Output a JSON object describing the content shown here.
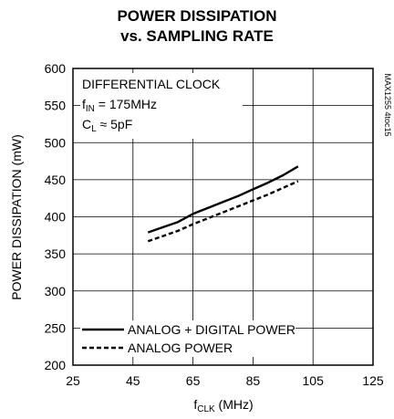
{
  "chart_data": {
    "type": "line",
    "title_line1": "POWER DISSIPATION",
    "title_line2": "vs. SAMPLING RATE",
    "xlabel_main": "f",
    "xlabel_sub": "CLK",
    "xlabel_unit": " (MHz)",
    "ylabel": "POWER DISSIPATION (mW)",
    "xlim": [
      25,
      125
    ],
    "ylim": [
      200,
      600
    ],
    "xticks": [
      25,
      45,
      65,
      85,
      105,
      125
    ],
    "yticks": [
      200,
      250,
      300,
      350,
      400,
      450,
      500,
      550,
      600
    ],
    "grid": true,
    "annotation": {
      "line1": "DIFFERENTIAL CLOCK",
      "line2_main": "f",
      "line2_sub": "IN",
      "line2_rest": " = 175MHz",
      "line3_main": "C",
      "line3_sub": "L",
      "line3_rest": " ≈ 5pF"
    },
    "side_code": "MAX1255 4toc15",
    "legend_position": "bottom-left",
    "series": [
      {
        "name": "ANALOG + DIGITAL POWER",
        "style": "solid",
        "x": [
          50,
          55,
          60,
          65,
          70,
          75,
          80,
          85,
          90,
          95,
          100
        ],
        "y": [
          379,
          386,
          393,
          404,
          412,
          420,
          428,
          437,
          446,
          456,
          468
        ]
      },
      {
        "name": "ANALOG POWER",
        "style": "dashed",
        "x": [
          50,
          55,
          60,
          65,
          70,
          75,
          80,
          85,
          90,
          95,
          100
        ],
        "y": [
          367,
          374,
          381,
          390,
          398,
          406,
          414,
          422,
          430,
          439,
          448
        ]
      }
    ]
  }
}
